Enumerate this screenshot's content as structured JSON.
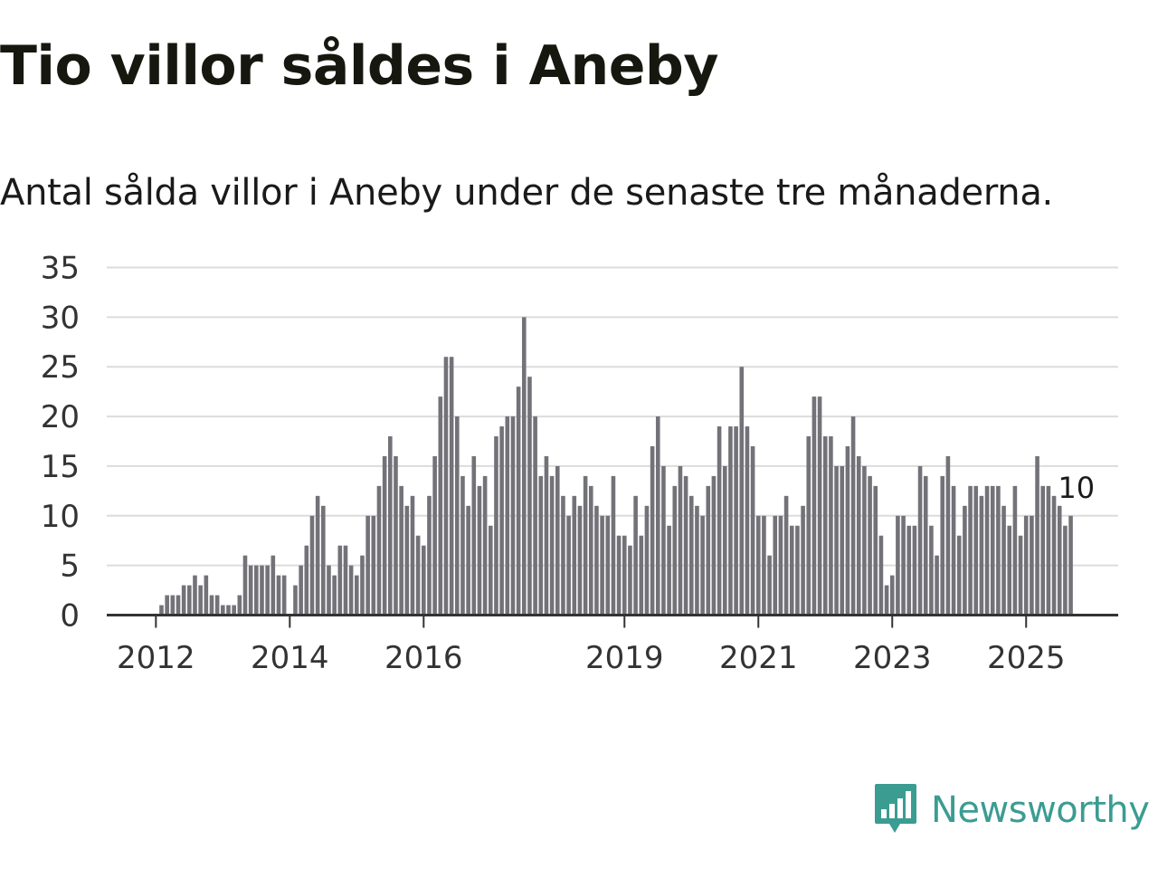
{
  "title": "Tio villor såldes i Aneby",
  "subtitle": "Antal sålda villor i Aneby under de senaste tre månaderna.",
  "brand": "Newsworthy",
  "colors": {
    "bar": "#737279",
    "highlight": "#1f9e92",
    "brand": "#3b9c92"
  },
  "chart_data": {
    "type": "bar",
    "title": "Tio villor såldes i Aneby",
    "subtitle": "Antal sålda villor i Aneby under de senaste tre månaderna.",
    "xlabel": "",
    "ylabel": "",
    "ylim": [
      0,
      35
    ],
    "yticks": [
      0,
      5,
      10,
      15,
      20,
      25,
      30,
      35
    ],
    "grid": true,
    "xticks": [
      {
        "label": "2012",
        "index": 8
      },
      {
        "label": "2014",
        "index": 32
      },
      {
        "label": "2016",
        "index": 56
      },
      {
        "label": "2019",
        "index": 92
      },
      {
        "label": "2021",
        "index": 116
      },
      {
        "label": "2023",
        "index": 140
      },
      {
        "label": "2025",
        "index": 164
      }
    ],
    "values": [
      0,
      0,
      0,
      0,
      0,
      0,
      0,
      0,
      0,
      1,
      2,
      2,
      2,
      3,
      3,
      4,
      3,
      4,
      2,
      2,
      1,
      1,
      1,
      2,
      6,
      5,
      5,
      5,
      5,
      6,
      4,
      4,
      0,
      3,
      5,
      7,
      10,
      12,
      11,
      5,
      4,
      7,
      7,
      5,
      4,
      6,
      10,
      10,
      13,
      16,
      18,
      16,
      13,
      11,
      12,
      8,
      7,
      12,
      16,
      22,
      26,
      26,
      20,
      14,
      11,
      16,
      13,
      14,
      9,
      18,
      19,
      20,
      20,
      23,
      30,
      24,
      20,
      14,
      16,
      14,
      15,
      12,
      10,
      12,
      11,
      14,
      13,
      11,
      10,
      10,
      14,
      8,
      8,
      7,
      12,
      8,
      11,
      17,
      20,
      15,
      9,
      13,
      15,
      14,
      12,
      11,
      10,
      13,
      14,
      19,
      15,
      19,
      19,
      25,
      19,
      17,
      10,
      10,
      6,
      10,
      10,
      12,
      9,
      9,
      11,
      18,
      22,
      22,
      18,
      18,
      15,
      15,
      17,
      20,
      16,
      15,
      14,
      13,
      8,
      3,
      4,
      10,
      10,
      9,
      9,
      15,
      14,
      9,
      6,
      14,
      16,
      13,
      8,
      11,
      13,
      13,
      12,
      13,
      13,
      13,
      11,
      9,
      13,
      8,
      10,
      10,
      16,
      13,
      13,
      12,
      11,
      9,
      10
    ],
    "highlight_index": 173,
    "annotation": {
      "label": "10",
      "value": 10,
      "index": 173
    }
  }
}
